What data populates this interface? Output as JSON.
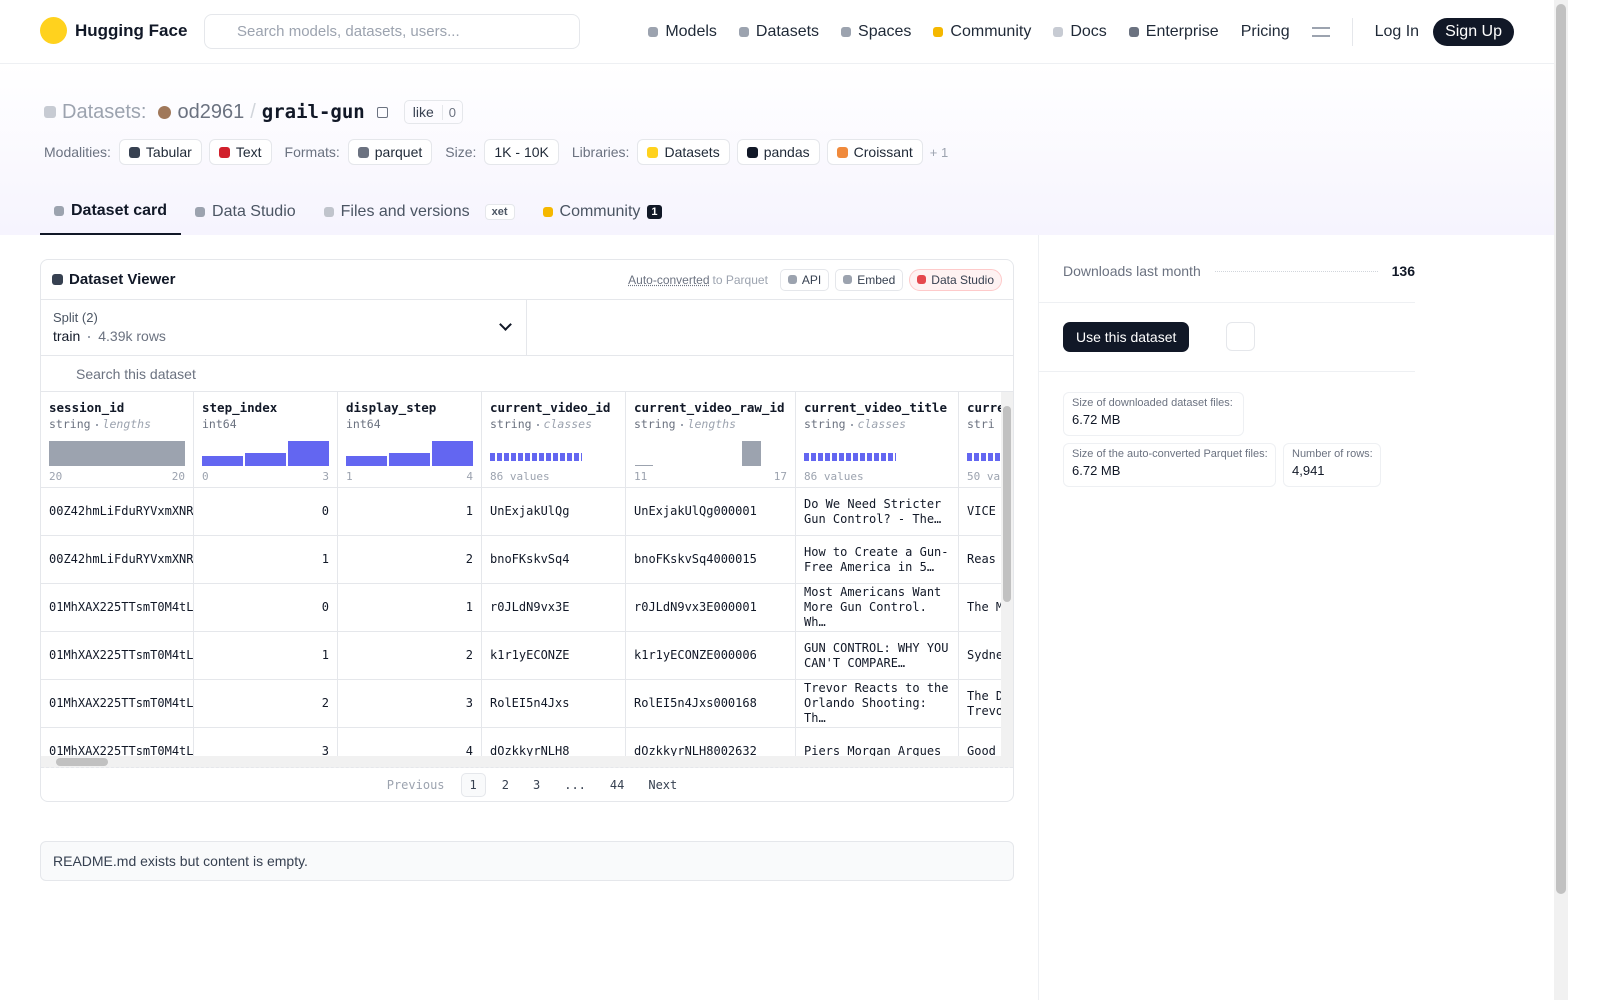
{
  "nav": {
    "brand": "Hugging Face",
    "search_placeholder": "Search models, datasets, users...",
    "links": [
      "Models",
      "Datasets",
      "Spaces",
      "Community",
      "Docs",
      "Enterprise",
      "Pricing"
    ],
    "login": "Log In",
    "signup": "Sign Up"
  },
  "header": {
    "prefix": "Datasets:",
    "owner": "od2961",
    "separator": "/",
    "name": "grail-gun",
    "like": "like",
    "likes": 0,
    "tags": [
      {
        "label": "Modalities:",
        "items": [
          "Tabular",
          "Text"
        ]
      },
      {
        "label": "Formats:",
        "items": [
          "parquet"
        ]
      },
      {
        "label": "Size:",
        "items": [
          "1K - 10K"
        ]
      },
      {
        "label": "Libraries:",
        "items": [
          "Datasets",
          "pandas",
          "Croissant"
        ]
      }
    ],
    "more": "+ 1"
  },
  "tabs": [
    {
      "label": "Dataset card"
    },
    {
      "label": "Data Studio"
    },
    {
      "label": "Files and versions",
      "badge": "xet"
    },
    {
      "label": "Community",
      "badge": "1"
    }
  ],
  "viewer": {
    "title": "Dataset Viewer",
    "auto_converted": "Auto-converted",
    "to_parquet": "to Parquet",
    "buttons": [
      "API",
      "Embed",
      "Data Studio"
    ],
    "split_label": "Split (2)",
    "split": "train",
    "rows_count": "4.39k rows",
    "search_placeholder": "Search this dataset",
    "columns": [
      {
        "name": "session_id",
        "type": "string",
        "stat": "lengths",
        "min": "20",
        "max": "20"
      },
      {
        "name": "step_index",
        "type": "int64",
        "min": "0",
        "max": "3"
      },
      {
        "name": "display_step",
        "type": "int64",
        "min": "1",
        "max": "4"
      },
      {
        "name": "current_video_id",
        "type": "string",
        "stat": "classes",
        "min": "86 values"
      },
      {
        "name": "current_video_raw_id",
        "type": "string",
        "stat": "lengths",
        "min": "11",
        "max": "17"
      },
      {
        "name": "current_video_title",
        "type": "string",
        "stat": "classes",
        "min": "86 values"
      },
      {
        "name": "curre",
        "type": "stri",
        "min": "50 va"
      }
    ],
    "rows": [
      [
        "00Z42hmLiFduRYVxmXNR",
        "0",
        "1",
        "UnExjakUlQg",
        "UnExjakUlQg000001",
        "Do We Need Stricter Gun Control? - The…",
        "VICE"
      ],
      [
        "00Z42hmLiFduRYVxmXNR",
        "1",
        "2",
        "bnoFKskvSq4",
        "bnoFKskvSq4000015",
        "How to Create a Gun-Free America in 5…",
        "Reas"
      ],
      [
        "01MhXAX225TTsmT0M4tL",
        "0",
        "1",
        "r0JLdN9vx3E",
        "r0JLdN9vx3E000001",
        "Most Americans Want More Gun Control. Wh…",
        "The M"
      ],
      [
        "01MhXAX225TTsmT0M4tL",
        "1",
        "2",
        "k1r1yECONZE",
        "k1r1yECONZE000006",
        "GUN CONTROL: WHY YOU CAN'T COMPARE…",
        "Sydne"
      ],
      [
        "01MhXAX225TTsmT0M4tL",
        "2",
        "3",
        "RolEI5n4Jxs",
        "RolEI5n4Jxs000168",
        "Trevor Reacts to the Orlando Shooting: Th…",
        "The D Trevo"
      ],
      [
        "01MhXAX225TTsmT0M4tL",
        "3",
        "4",
        "dOzkkyrNLH8",
        "dOzkkyrNLH8002632",
        "Piers Morgan Argues",
        "Good"
      ]
    ],
    "pagination": {
      "previous": "Previous",
      "pages": [
        "1",
        "2",
        "3",
        "...",
        "44"
      ],
      "next": "Next"
    }
  },
  "readme": "README.md exists but content is empty.",
  "sidebar": {
    "downloads_label": "Downloads last month",
    "downloads": 136,
    "use_button": "Use this dataset",
    "stats": [
      {
        "label": "Size of downloaded dataset files:",
        "value": "6.72 MB"
      },
      {
        "label": "Size of the auto-converted Parquet files:",
        "value": "6.72 MB"
      },
      {
        "label": "Number of rows:",
        "value": "4,941"
      }
    ]
  }
}
